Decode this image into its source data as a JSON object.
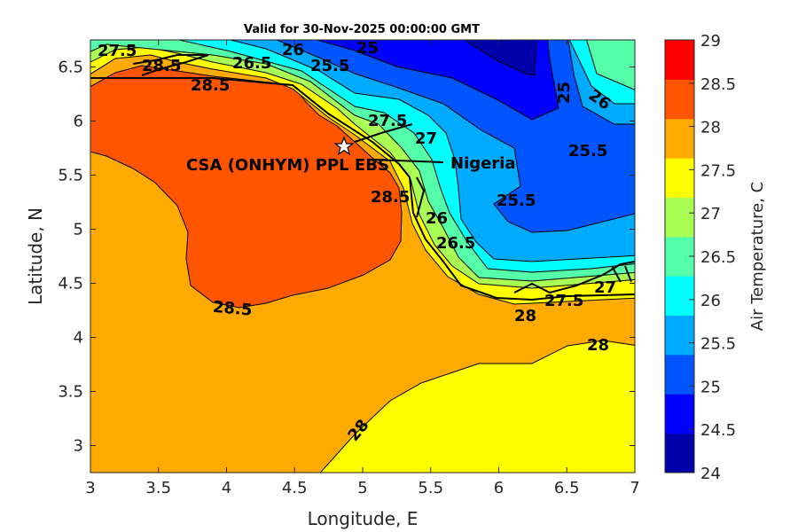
{
  "chart_data": {
    "type": "contour",
    "title": "Valid for 30-Nov-2025 00:00:00 GMT",
    "xlabel": "Longitude, E",
    "ylabel": "Latitude, N",
    "xlim": [
      3,
      7
    ],
    "ylim": [
      2.75,
      6.75
    ],
    "xticks": [
      "3",
      "3.5",
      "4",
      "4.5",
      "5",
      "5.5",
      "6",
      "6.5",
      "7"
    ],
    "yticks": [
      "3",
      "3.5",
      "4",
      "4.5",
      "5",
      "5.5",
      "6",
      "6.5"
    ],
    "colorbar": {
      "label": "Air Temperature, C",
      "range": [
        24,
        29
      ],
      "ticks": [
        "24",
        "24.5",
        "25",
        "25.5",
        "26",
        "26.5",
        "27",
        "27.5",
        "28",
        "28.5",
        "29"
      ],
      "colors": [
        "#0000aa",
        "#0000ff",
        "#0055ff",
        "#00aaff",
        "#00ffff",
        "#55ffaa",
        "#aaff55",
        "#ffff00",
        "#ffaa00",
        "#ff5500",
        "#ff0000"
      ]
    },
    "levels": [
      24,
      24.5,
      25,
      25.5,
      26,
      26.5,
      27,
      27.5,
      28,
      28.5,
      29
    ],
    "contour_labels": [
      "27.5",
      "28.5",
      "26",
      "25.5",
      "25",
      "26.5",
      "28.5",
      "25",
      "26",
      "25.5",
      "25.5",
      "26",
      "26.5",
      "27.5",
      "28.5",
      "27",
      "28.5",
      "28",
      "27.5",
      "27",
      "28",
      "28"
    ],
    "annotations": {
      "site": "CSA (ONHYM) PPL EBS",
      "site_marker": "star-icon",
      "country": "Nigeria"
    }
  }
}
